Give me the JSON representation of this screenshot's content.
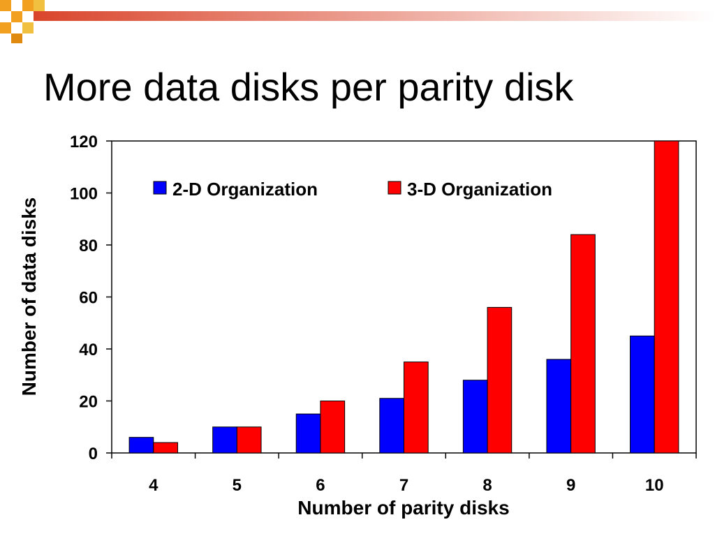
{
  "slide": {
    "title": "More data disks per parity disk"
  },
  "colors": {
    "series_2d": "#0000ff",
    "series_3d": "#ff0000",
    "header_accent": "#d9452b",
    "header_orange": "#f2a020"
  },
  "chart_data": {
    "type": "bar",
    "xlabel": "Number of parity disks",
    "ylabel": "Number of data disks",
    "categories": [
      "4",
      "5",
      "6",
      "7",
      "8",
      "9",
      "10"
    ],
    "ylim": [
      0,
      120
    ],
    "yticks": [
      0,
      20,
      40,
      60,
      80,
      100,
      120
    ],
    "grid": false,
    "legend_placement": "top-inside",
    "series": [
      {
        "name": "2-D Organization",
        "color": "#0000ff",
        "values": [
          6,
          10,
          15,
          21,
          28,
          36,
          45
        ]
      },
      {
        "name": "3-D Organization",
        "color": "#ff0000",
        "values": [
          4,
          10,
          20,
          35,
          56,
          84,
          120
        ]
      }
    ]
  }
}
